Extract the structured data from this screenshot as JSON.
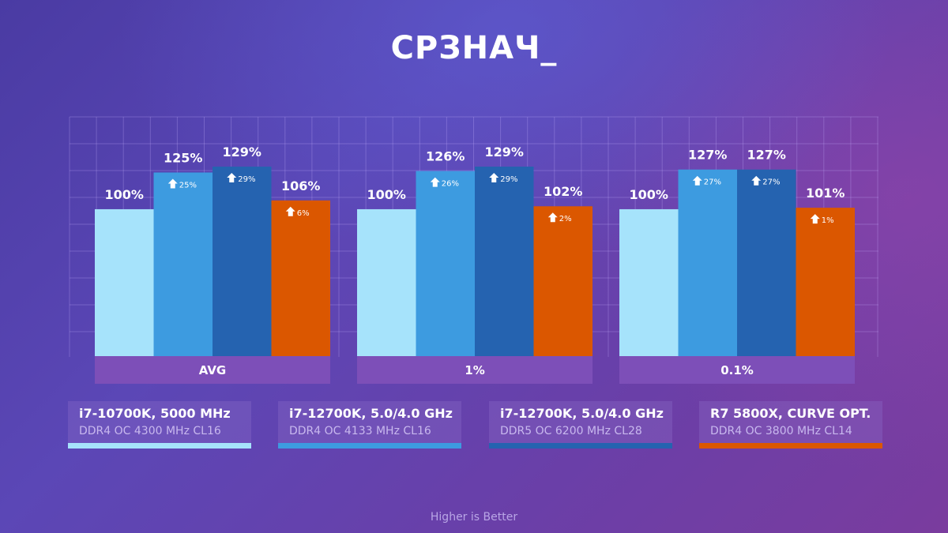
{
  "title": "СРЗНАЧ_",
  "footer": "Higher is Better",
  "legend": [
    {
      "name": "i7-10700K, 5000 MHz",
      "memory": "DDR4 OC 4300 MHz CL16",
      "color": "#a6e3fb"
    },
    {
      "name": "i7-12700K, 5.0/4.0 GHz",
      "memory": "DDR4 OC 4133 MHz CL16",
      "color": "#3d9be0"
    },
    {
      "name": "i7-12700K, 5.0/4.0 GHz",
      "memory": "DDR5 OC 6200 MHz CL28",
      "color": "#2563b0"
    },
    {
      "name": "R7 5800X, CURVE OPT.",
      "memory": "DDR4 OC 3800 MHz CL14",
      "color": "#db5700"
    }
  ],
  "chart_data": {
    "type": "bar",
    "categories": [
      "AVG",
      "1%",
      "0.1%"
    ],
    "series": [
      {
        "name": "i7-10700K, 5000 MHz",
        "values": [
          100,
          100,
          100
        ],
        "labels": [
          "100%",
          "100%",
          "100%"
        ],
        "deltas": [
          "",
          "",
          ""
        ],
        "color": "#a6e3fb"
      },
      {
        "name": "i7-12700K, 5.0/4.0 GHz",
        "values": [
          125,
          126,
          127
        ],
        "labels": [
          "125%",
          "126%",
          "127%"
        ],
        "deltas": [
          "25%",
          "26%",
          "27%"
        ],
        "color": "#3d9be0"
      },
      {
        "name": "i7-12700K, 5.0/4.0 GHz",
        "values": [
          129,
          129,
          127
        ],
        "labels": [
          "129%",
          "129%",
          "127%"
        ],
        "deltas": [
          "29%",
          "29%",
          "27%"
        ],
        "color": "#2563b0"
      },
      {
        "name": "R7 5800X, CURVE OPT.",
        "values": [
          106,
          102,
          101
        ],
        "labels": [
          "106%",
          "102%",
          "101%"
        ],
        "deltas": [
          "6%",
          "2%",
          "1%"
        ],
        "color": "#db5700"
      }
    ],
    "ylim": [
      0,
      129
    ],
    "category_band_color": "#7d4fb8",
    "grid": true
  }
}
